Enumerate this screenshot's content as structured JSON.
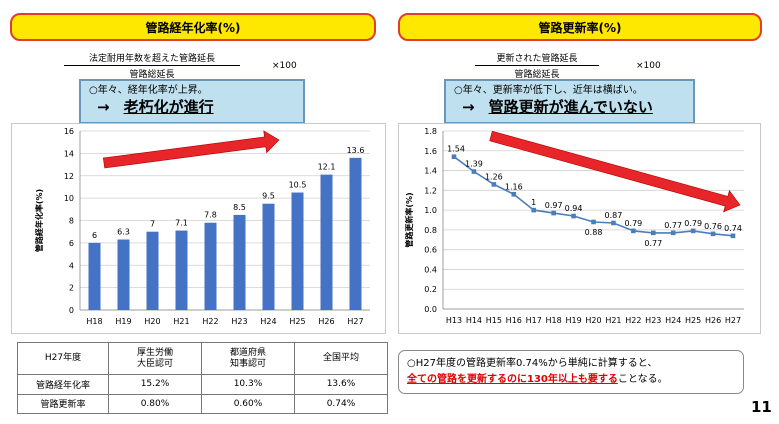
{
  "left": {
    "title": "管路経年化率(%)",
    "formula_numerator": "法定耐用年数を超えた管路延長",
    "formula_denominator": "管路総延長",
    "formula_times": "×100",
    "callout_line1": "○年々、経年化率が上昇。",
    "callout_arrow": "→",
    "callout_line2": "老朽化が進行"
  },
  "right": {
    "title": "管路更新率(%)",
    "formula_numerator": "更新された管路延長",
    "formula_denominator": "管路総延長",
    "formula_times": "×100",
    "callout_line1": "○年々、更新率が低下し、近年は横ばい。",
    "callout_arrow": "→",
    "callout_line2": "管路更新が進んでいない"
  },
  "chart_data": [
    {
      "type": "bar",
      "title": "",
      "ylabel": "管路経年化率(%)",
      "categories": [
        "H18",
        "H19",
        "H20",
        "H21",
        "H22",
        "H23",
        "H24",
        "H25",
        "H26",
        "H27"
      ],
      "values": [
        6,
        6.3,
        7,
        7.1,
        7.8,
        8.5,
        9.5,
        10.5,
        12.1,
        13.6
      ],
      "labels": [
        "6",
        "6.3",
        "7",
        "7.1",
        "7.8",
        "8.5",
        "9.5",
        "10.5",
        "12.1",
        "13.6"
      ],
      "yticks": [
        "0",
        "2",
        "4",
        "6",
        "8",
        "10",
        "12",
        "14",
        "16"
      ],
      "ylim": [
        0,
        16
      ],
      "grid": true,
      "colors": {
        "bar": "#4472c4",
        "trend_arrow": "#e8262a"
      }
    },
    {
      "type": "line",
      "title": "",
      "ylabel": "管路更新率(%)",
      "categories": [
        "H13",
        "H14",
        "H15",
        "H16",
        "H17",
        "H18",
        "H19",
        "H20",
        "H21",
        "H22",
        "H23",
        "H24",
        "H25",
        "H26",
        "H27"
      ],
      "values": [
        1.54,
        1.39,
        1.26,
        1.16,
        1,
        0.97,
        0.94,
        0.88,
        0.87,
        0.79,
        0.77,
        0.77,
        0.79,
        0.76,
        0.74
      ],
      "labels": [
        "1.54",
        "1.39",
        "1.26",
        "1.16",
        "1",
        "0.97",
        "0.94",
        "0.88",
        "0.87",
        "0.79",
        "0.77",
        "0.77",
        "0.79",
        "0.76",
        "0.74"
      ],
      "yticks": [
        "0.0",
        "0.2",
        "0.4",
        "0.6",
        "0.8",
        "1.0",
        "1.2",
        "1.4",
        "1.6",
        "1.8"
      ],
      "ylim": [
        0,
        1.8
      ],
      "grid": true,
      "colors": {
        "line": "#4a7ebb",
        "trend_arrow": "#e8262a"
      }
    }
  ],
  "table": {
    "headers": [
      "H27年度",
      "厚生労働\n大臣認可",
      "都道府県\n知事認可",
      "全国平均"
    ],
    "rows": [
      {
        "label": "管路経年化率",
        "values": [
          "15.2%",
          "10.3%",
          "13.6%"
        ]
      },
      {
        "label": "管路更新率",
        "values": [
          "0.80%",
          "0.60%",
          "0.74%"
        ]
      }
    ]
  },
  "note": {
    "line1": "○H27年度の管路更新率0.74%から単純に計算すると、",
    "highlight": "全ての管路を更新するのに130年以上も要する",
    "tail": "ことなる。"
  },
  "page_number": "11"
}
